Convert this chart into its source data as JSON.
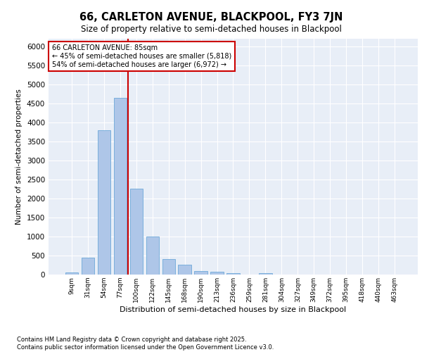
{
  "title": "66, CARLETON AVENUE, BLACKPOOL, FY3 7JN",
  "subtitle": "Size of property relative to semi-detached houses in Blackpool",
  "xlabel": "Distribution of semi-detached houses by size in Blackpool",
  "ylabel": "Number of semi-detached properties",
  "categories": [
    "9sqm",
    "31sqm",
    "54sqm",
    "77sqm",
    "100sqm",
    "122sqm",
    "145sqm",
    "168sqm",
    "190sqm",
    "213sqm",
    "236sqm",
    "259sqm",
    "281sqm",
    "304sqm",
    "327sqm",
    "349sqm",
    "372sqm",
    "395sqm",
    "418sqm",
    "440sqm",
    "463sqm"
  ],
  "values": [
    50,
    450,
    3800,
    4650,
    2250,
    1000,
    400,
    250,
    100,
    80,
    30,
    5,
    30,
    5,
    0,
    0,
    0,
    0,
    0,
    0,
    0
  ],
  "bar_color": "#aec6e8",
  "bar_edge_color": "#5a9fd4",
  "vline_color": "#cc0000",
  "vline_position": 3.5,
  "annotation_box_text": "66 CARLETON AVENUE: 85sqm\n← 45% of semi-detached houses are smaller (5,818)\n54% of semi-detached houses are larger (6,972) →",
  "ylim": [
    0,
    6200
  ],
  "yticks": [
    0,
    500,
    1000,
    1500,
    2000,
    2500,
    3000,
    3500,
    4000,
    4500,
    5000,
    5500,
    6000
  ],
  "bg_color": "#e8eef7",
  "grid_color": "#ffffff",
  "footer_line1": "Contains HM Land Registry data © Crown copyright and database right 2025.",
  "footer_line2": "Contains public sector information licensed under the Open Government Licence v3.0."
}
